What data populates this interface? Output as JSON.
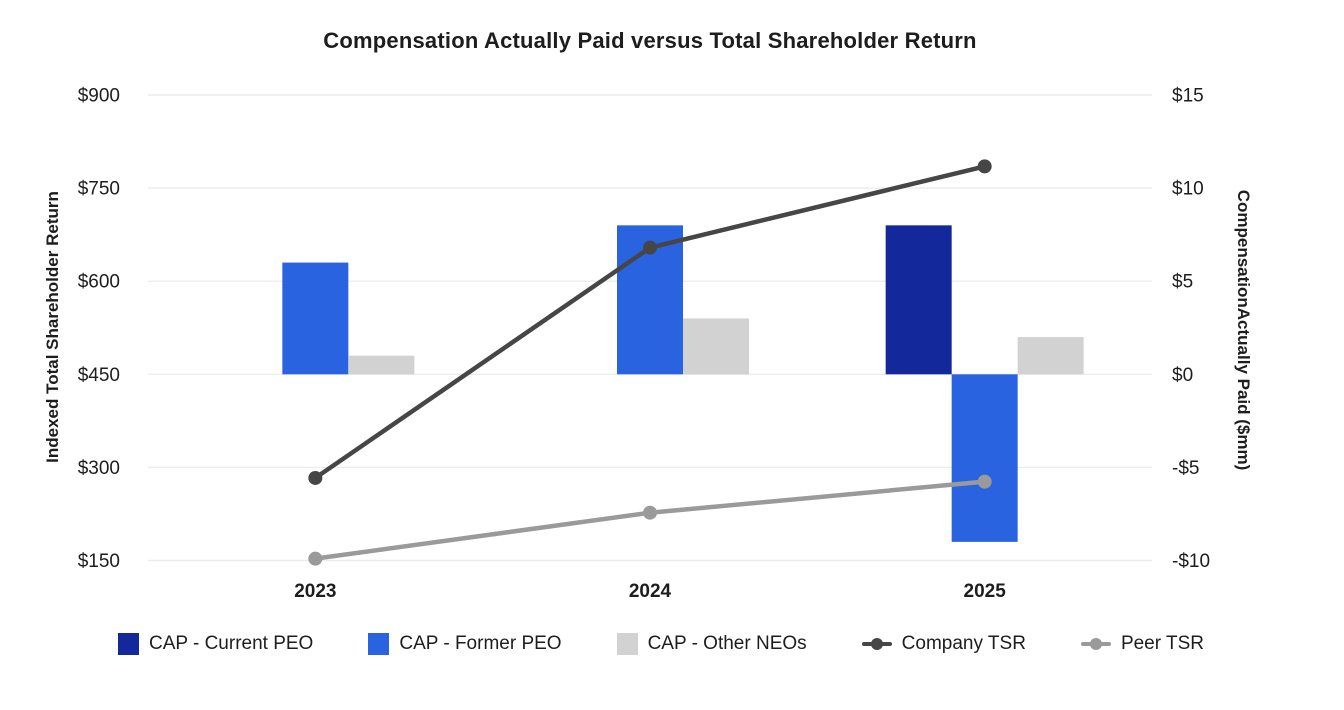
{
  "page": {
    "background": "#FFFFFF",
    "text_color": "#1D1D1D",
    "grid_color": "#ECECEC"
  },
  "chart_data": {
    "type": "combo-bar-line",
    "title": "Compensation Actually Paid versus Total Shareholder Return",
    "categories": [
      "2023",
      "2024",
      "2025"
    ],
    "bar_series": [
      {
        "name": "CAP - Current PEO",
        "axis": "right",
        "color": "#13289B",
        "values": [
          null,
          null,
          8
        ]
      },
      {
        "name": "CAP - Former PEO",
        "axis": "right",
        "color": "#2A63E0",
        "values": [
          6,
          8,
          -9
        ]
      },
      {
        "name": "CAP - Other NEOs",
        "axis": "right",
        "color": "#D2D2D2",
        "values": [
          1,
          3,
          2
        ]
      }
    ],
    "line_series": [
      {
        "name": "Company TSR",
        "axis": "left",
        "color": "#464646",
        "values": [
          283,
          654,
          785
        ]
      },
      {
        "name": "Peer TSR",
        "axis": "left",
        "color": "#9A9A9A",
        "values": [
          153,
          227,
          277
        ]
      }
    ],
    "left_axis": {
      "title": "Indexed Total Shareholder Return",
      "min": 150,
      "max": 900,
      "tick_step": 150,
      "tick_labels": [
        "$150",
        "$300",
        "$450",
        "$600",
        "$750",
        "$900"
      ]
    },
    "right_axis": {
      "title": "CompensationActually Paid ($mm)",
      "min": -10,
      "max": 15,
      "tick_step": 5,
      "tick_labels": [
        "-$10",
        "-$5",
        "$0",
        "$5",
        "$10",
        "$15"
      ]
    },
    "grid": true,
    "legend_position": "bottom"
  }
}
